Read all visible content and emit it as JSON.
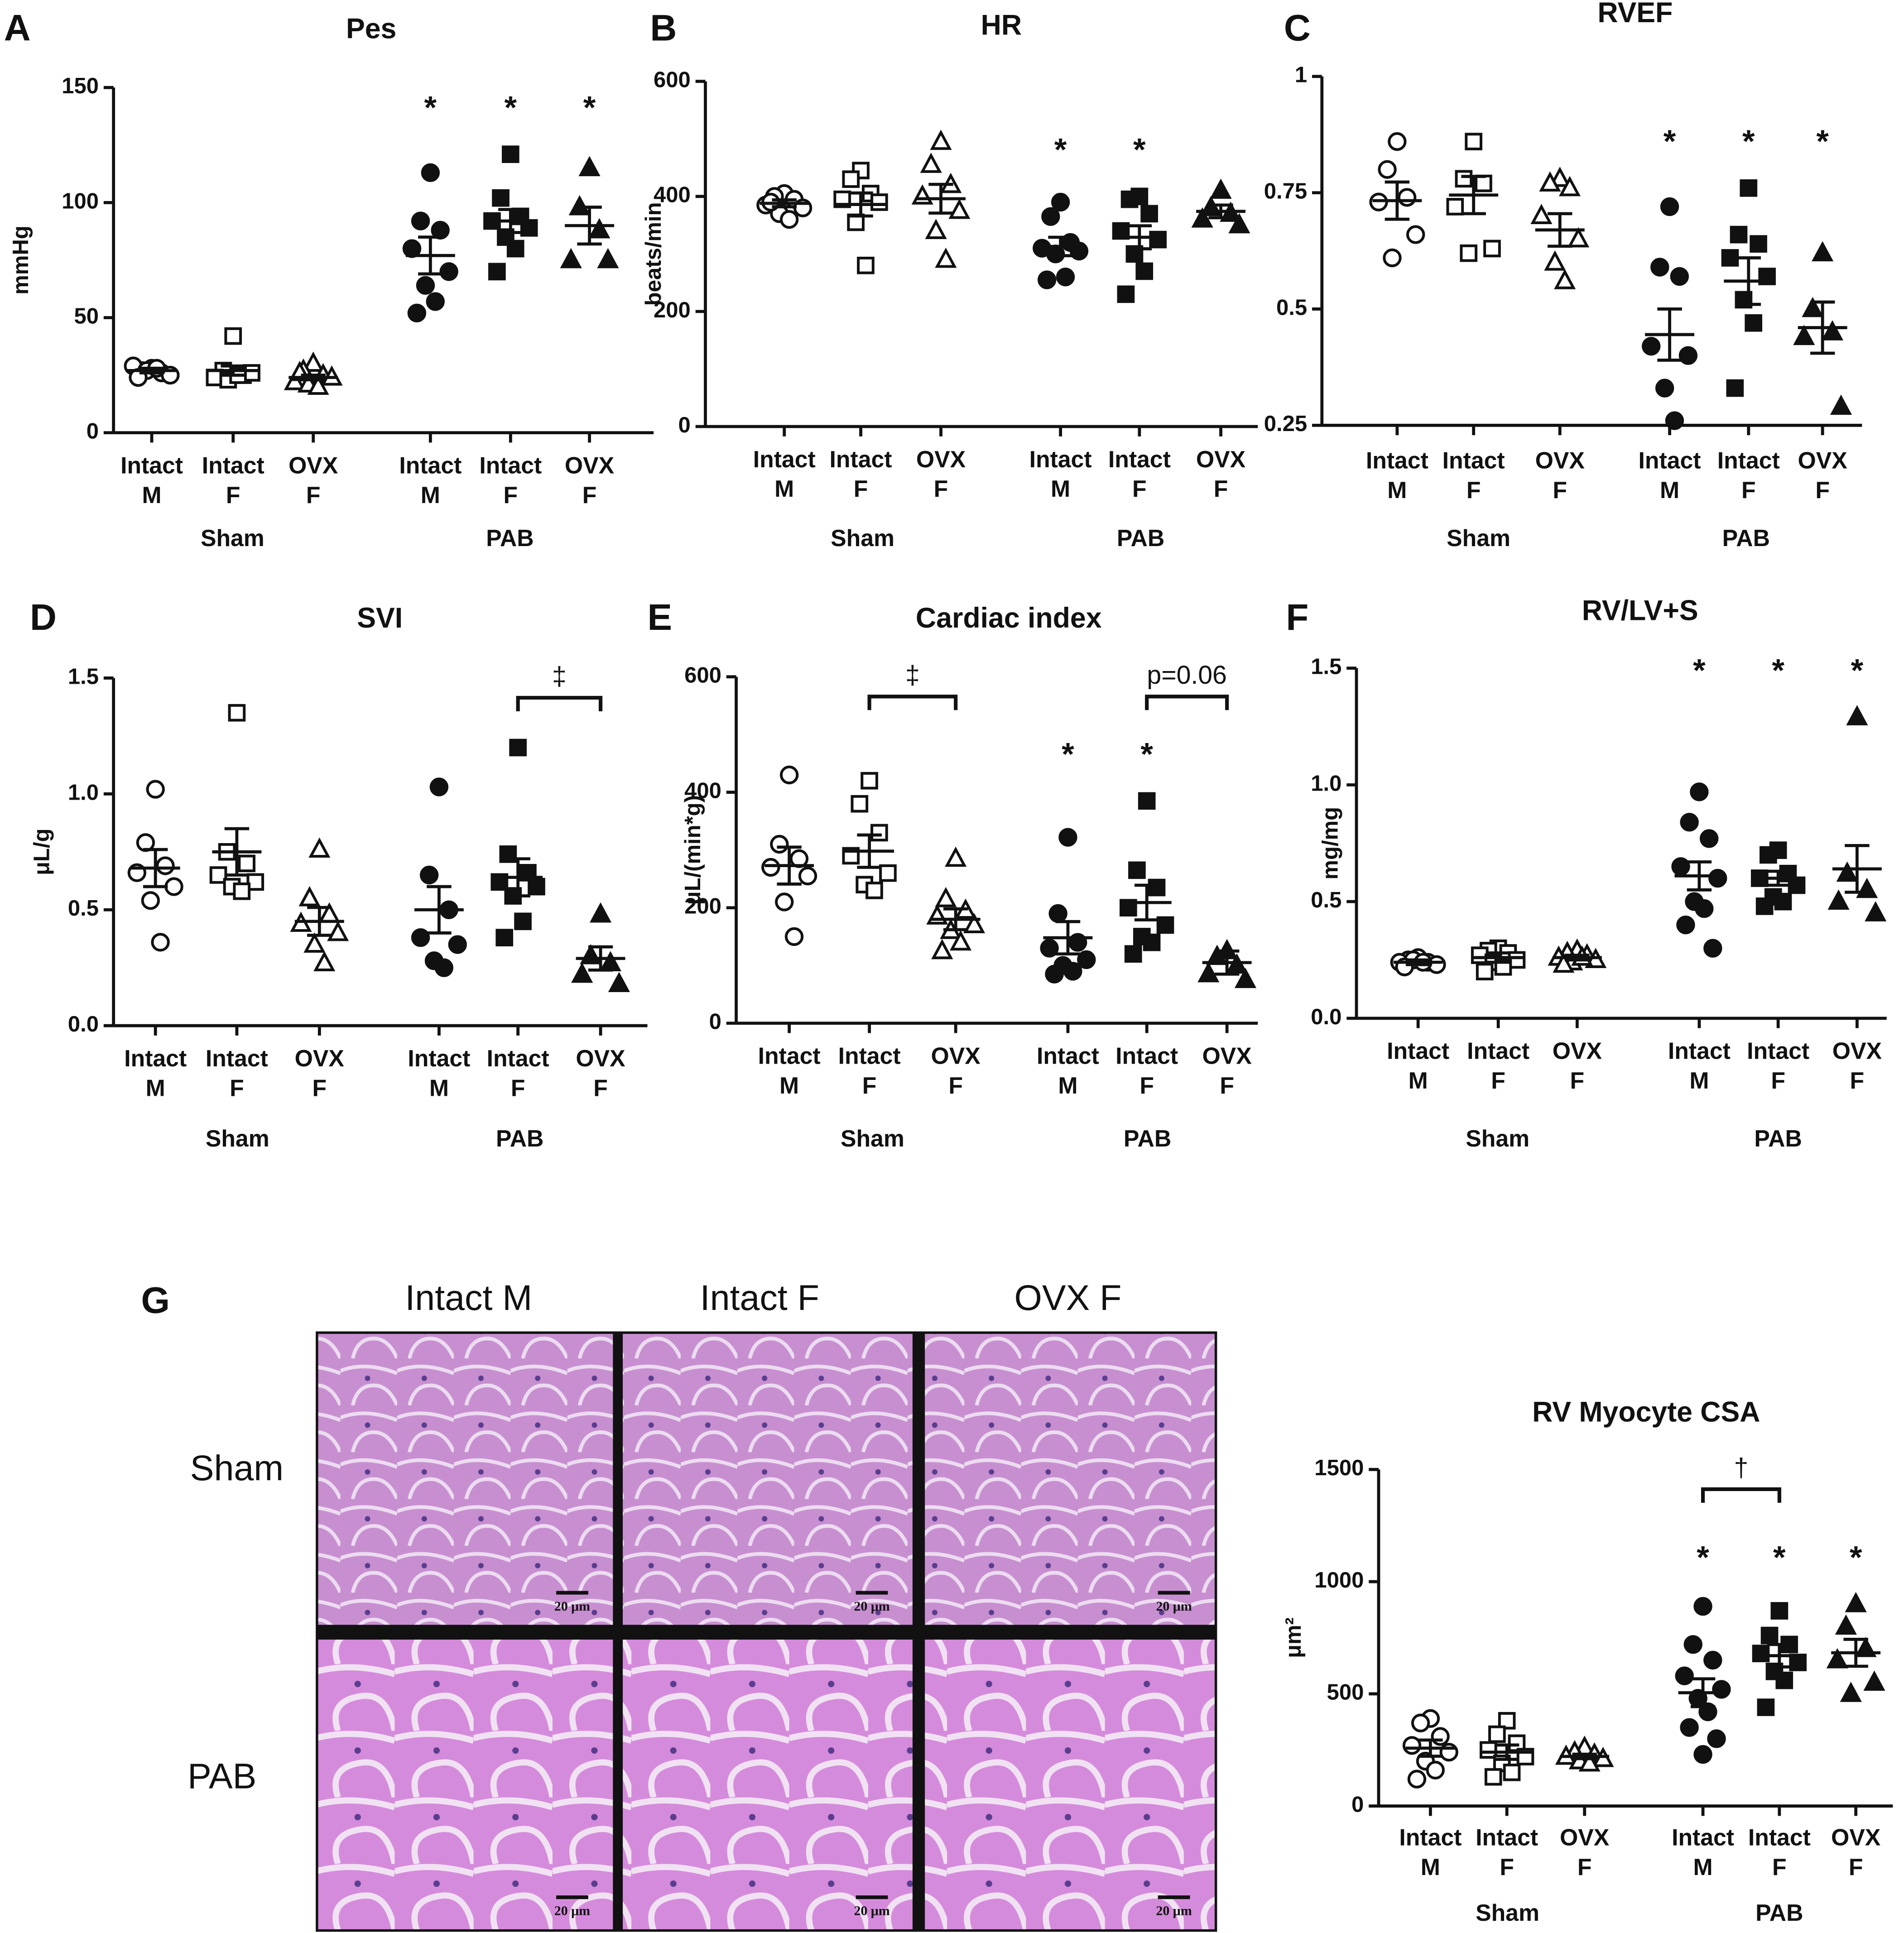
{
  "chart_data": [
    {
      "type": "dotplot",
      "panel": "A",
      "title": "Pes",
      "ylabel": "mmHg",
      "ylim": [
        0,
        150
      ],
      "yticks": [
        0,
        50,
        100,
        150
      ],
      "categories": [
        [
          "Intact",
          "M"
        ],
        [
          "Intact",
          "F"
        ],
        [
          "OVX",
          "F"
        ],
        [
          "Intact",
          "M"
        ],
        [
          "Intact",
          "F"
        ],
        [
          "OVX",
          "F"
        ]
      ],
      "groups": [
        "Sham",
        "PAB"
      ],
      "markers": [
        "circle",
        "square",
        "triangle",
        "circle",
        "square",
        "triangle"
      ],
      "filled": [
        false,
        false,
        false,
        true,
        true,
        true
      ],
      "color": "#111111",
      "values": [
        [
          28,
          27,
          26,
          29,
          25,
          27,
          28,
          24
        ],
        [
          42,
          27,
          25,
          24,
          26,
          23,
          25
        ],
        [
          30,
          27,
          25,
          22,
          24,
          21,
          20,
          26
        ],
        [
          113,
          92,
          88,
          80,
          70,
          64,
          57,
          52
        ],
        [
          121,
          102,
          94,
          92,
          89,
          85,
          80,
          70
        ],
        [
          115,
          98,
          88,
          75,
          75
        ]
      ],
      "means": [
        27,
        27,
        24,
        77,
        92,
        90
      ],
      "sems": [
        1,
        2,
        1,
        8,
        5,
        8
      ],
      "stars": [
        null,
        null,
        null,
        "*",
        "*",
        "*"
      ]
    },
    {
      "type": "dotplot",
      "panel": "B",
      "title": "HR",
      "ylabel": "beats/min",
      "ylim": [
        0,
        600
      ],
      "yticks": [
        0,
        200,
        400,
        600
      ],
      "categories": [
        [
          "Intact",
          "M"
        ],
        [
          "Intact",
          "F"
        ],
        [
          "OVX",
          "F"
        ],
        [
          "Intact",
          "M"
        ],
        [
          "Intact",
          "F"
        ],
        [
          "OVX",
          "F"
        ]
      ],
      "groups": [
        "Sham",
        "PAB"
      ],
      "markers": [
        "circle",
        "square",
        "triangle",
        "circle",
        "square",
        "triangle"
      ],
      "filled": [
        false,
        false,
        false,
        true,
        true,
        true
      ],
      "color": "#111111",
      "values": [
        [
          405,
          400,
          395,
          385,
          380,
          370,
          360,
          390
        ],
        [
          445,
          430,
          405,
          395,
          390,
          355,
          280
        ],
        [
          495,
          455,
          420,
          400,
          375,
          340,
          290
        ],
        [
          390,
          365,
          320,
          310,
          305,
          300,
          260,
          255
        ],
        [
          400,
          395,
          370,
          340,
          325,
          300,
          270,
          230
        ],
        [
          410,
          380,
          370,
          360,
          350
        ]
      ],
      "means": [
        388,
        386,
        396,
        313,
        329,
        374
      ],
      "sems": [
        6,
        20,
        25,
        16,
        20,
        11
      ],
      "stars": [
        null,
        null,
        null,
        "*",
        "*",
        null
      ]
    },
    {
      "type": "dotplot",
      "panel": "C",
      "title": "RVEF",
      "ylim": [
        0.25,
        1
      ],
      "yticks": [
        0.25,
        0.5,
        0.75,
        1
      ],
      "categories": [
        [
          "Intact",
          "M"
        ],
        [
          "Intact",
          "F"
        ],
        [
          "OVX",
          "F"
        ],
        [
          "Intact",
          "M"
        ],
        [
          "Intact",
          "F"
        ],
        [
          "OVX",
          "F"
        ]
      ],
      "groups": [
        "Sham",
        "PAB"
      ],
      "markers": [
        "circle",
        "square",
        "triangle",
        "circle",
        "square",
        "triangle"
      ],
      "filled": [
        false,
        false,
        false,
        true,
        true,
        true
      ],
      "color": "#111111",
      "values": [
        [
          0.86,
          0.8,
          0.74,
          0.73,
          0.66,
          0.61
        ],
        [
          0.86,
          0.78,
          0.77,
          0.72,
          0.63,
          0.62
        ],
        [
          0.78,
          0.77,
          0.76,
          0.7,
          0.65,
          0.6,
          0.56
        ],
        [
          0.72,
          0.59,
          0.57,
          0.42,
          0.4,
          0.33,
          0.26
        ],
        [
          0.76,
          0.66,
          0.64,
          0.61,
          0.57,
          0.52,
          0.47,
          0.33
        ],
        [
          0.62,
          0.5,
          0.45,
          0.44,
          0.29
        ]
      ],
      "means": [
        0.733,
        0.745,
        0.67,
        0.445,
        0.56,
        0.46
      ],
      "sems": [
        0.04,
        0.04,
        0.035,
        0.055,
        0.05,
        0.055
      ],
      "stars": [
        null,
        null,
        null,
        "*",
        "*",
        "*"
      ]
    },
    {
      "type": "dotplot",
      "panel": "D",
      "title": "SVI",
      "ylabel": "μL/g",
      "ylim": [
        0,
        1.5
      ],
      "yticks": [
        {
          "value": 0,
          "label": "0.0"
        },
        0.5,
        {
          "value": 1,
          "label": "1.0"
        },
        1.5
      ],
      "categories": [
        [
          "Intact",
          "M"
        ],
        [
          "Intact",
          "F"
        ],
        [
          "OVX",
          "F"
        ],
        [
          "Intact",
          "M"
        ],
        [
          "Intact",
          "F"
        ],
        [
          "OVX",
          "F"
        ]
      ],
      "groups": [
        "Sham",
        "PAB"
      ],
      "markers": [
        "circle",
        "square",
        "triangle",
        "circle",
        "square",
        "triangle"
      ],
      "filled": [
        false,
        false,
        false,
        true,
        true,
        true
      ],
      "color": "#111111",
      "values": [
        [
          1.02,
          0.79,
          0.69,
          0.66,
          0.6,
          0.54,
          0.36
        ],
        [
          1.35,
          0.75,
          0.7,
          0.65,
          0.62,
          0.6,
          0.58
        ],
        [
          0.76,
          0.55,
          0.48,
          0.44,
          0.4,
          0.35,
          0.27
        ],
        [
          1.03,
          0.65,
          0.5,
          0.38,
          0.35,
          0.28,
          0.25
        ],
        [
          1.2,
          0.74,
          0.66,
          0.62,
          0.6,
          0.56,
          0.45,
          0.38
        ],
        [
          0.48,
          0.3,
          0.27,
          0.22,
          0.18
        ]
      ],
      "means": [
        0.68,
        0.75,
        0.45,
        0.5,
        0.64,
        0.29
      ],
      "sems": [
        0.08,
        0.1,
        0.06,
        0.1,
        0.08,
        0.05
      ],
      "stars": [
        null,
        null,
        null,
        null,
        null,
        null
      ],
      "brackets": [
        {
          "text": "‡",
          "categories": [
            4,
            5
          ]
        }
      ]
    },
    {
      "type": "dotplot",
      "panel": "E",
      "title": "Cardiac index",
      "ylabel": "μL/(min*g)",
      "ylim": [
        0,
        600
      ],
      "yticks": [
        0,
        200,
        400,
        600
      ],
      "categories": [
        [
          "Intact",
          "M"
        ],
        [
          "Intact",
          "F"
        ],
        [
          "OVX",
          "F"
        ],
        [
          "Intact",
          "M"
        ],
        [
          "Intact",
          "F"
        ],
        [
          "OVX",
          "F"
        ]
      ],
      "groups": [
        "Sham",
        "PAB"
      ],
      "markers": [
        "circle",
        "square",
        "triangle",
        "circle",
        "square",
        "triangle"
      ],
      "filled": [
        false,
        false,
        false,
        true,
        true,
        true
      ],
      "color": "#111111",
      "values": [
        [
          430,
          310,
          285,
          270,
          255,
          210,
          150
        ],
        [
          420,
          380,
          330,
          290,
          260,
          240,
          230
        ],
        [
          285,
          215,
          195,
          185,
          170,
          160,
          140,
          125
        ],
        [
          322,
          190,
          140,
          130,
          110,
          100,
          90,
          85
        ],
        [
          385,
          265,
          235,
          200,
          170,
          150,
          140,
          120
        ],
        [
          125,
          115,
          100,
          85,
          75
        ]
      ],
      "means": [
        273,
        298,
        180,
        148,
        209,
        105
      ],
      "sems": [
        32,
        28,
        18,
        28,
        30,
        20
      ],
      "stars": [
        null,
        null,
        null,
        "*",
        "*",
        null
      ],
      "brackets": [
        {
          "text": "‡",
          "categories": [
            1,
            2
          ]
        },
        {
          "text": "p=0.06",
          "categories": [
            4,
            5
          ]
        }
      ]
    },
    {
      "type": "dotplot",
      "panel": "F",
      "title": "RV/LV+S",
      "ylabel": "mg/mg",
      "ylim": [
        0,
        1.5
      ],
      "yticks": [
        {
          "value": 0,
          "label": "0.0"
        },
        0.5,
        {
          "value": 1,
          "label": "1.0"
        },
        1.5
      ],
      "categories": [
        [
          "Intact",
          "M"
        ],
        [
          "Intact",
          "F"
        ],
        [
          "OVX",
          "F"
        ],
        [
          "Intact",
          "M"
        ],
        [
          "Intact",
          "F"
        ],
        [
          "OVX",
          "F"
        ]
      ],
      "groups": [
        "Sham",
        "PAB"
      ],
      "markers": [
        "circle",
        "square",
        "triangle",
        "circle",
        "square",
        "triangle"
      ],
      "filled": [
        false,
        false,
        false,
        true,
        true,
        true
      ],
      "color": "#111111",
      "values": [
        [
          0.26,
          0.25,
          0.24,
          0.24,
          0.23,
          0.25,
          0.24,
          0.22
        ],
        [
          0.3,
          0.29,
          0.28,
          0.27,
          0.25,
          0.24,
          0.22,
          0.2
        ],
        [
          0.29,
          0.28,
          0.27,
          0.26,
          0.25,
          0.24,
          0.26,
          0.23
        ],
        [
          0.97,
          0.84,
          0.77,
          0.65,
          0.6,
          0.5,
          0.47,
          0.4,
          0.3
        ],
        [
          0.72,
          0.7,
          0.62,
          0.6,
          0.57,
          0.52,
          0.5,
          0.48
        ],
        [
          1.29,
          0.62,
          0.55,
          0.5,
          0.45
        ]
      ],
      "means": [
        0.24,
        0.26,
        0.26,
        0.61,
        0.6,
        0.64
      ],
      "sems": [
        0.01,
        0.02,
        0.01,
        0.06,
        0.03,
        0.1
      ],
      "stars": [
        null,
        null,
        null,
        "*",
        "*",
        "*"
      ]
    },
    {
      "type": "dotplot",
      "title": "RV Myocyte CSA",
      "ylabel": "μm²",
      "ylim": [
        0,
        1500
      ],
      "yticks": [
        0,
        500,
        1000,
        1500
      ],
      "categories": [
        [
          "Intact",
          "M"
        ],
        [
          "Intact",
          "F"
        ],
        [
          "OVX",
          "F"
        ],
        [
          "Intact",
          "M"
        ],
        [
          "Intact",
          "F"
        ],
        [
          "OVX",
          "F"
        ]
      ],
      "groups": [
        "Sham",
        "PAB"
      ],
      "markers": [
        "circle",
        "square",
        "triangle",
        "circle",
        "square",
        "triangle"
      ],
      "filled": [
        false,
        false,
        false,
        true,
        true,
        true
      ],
      "color": "#111111",
      "values": [
        [
          390,
          370,
          310,
          270,
          240,
          200,
          160,
          120
        ],
        [
          380,
          320,
          280,
          250,
          220,
          190,
          150,
          130
        ],
        [
          260,
          240,
          230,
          220,
          210,
          200,
          190
        ],
        [
          890,
          720,
          650,
          580,
          520,
          480,
          420,
          350,
          300,
          230
        ],
        [
          870,
          760,
          720,
          680,
          640,
          600,
          560,
          440
        ],
        [
          900,
          800,
          700,
          650,
          550,
          500
        ]
      ],
      "means": [
        258,
        240,
        221,
        505,
        670,
        683
      ],
      "sems": [
        36,
        32,
        10,
        62,
        50,
        60
      ],
      "stars": [
        null,
        null,
        null,
        "*",
        "*",
        "*"
      ],
      "brackets": [
        {
          "text": "†",
          "categories": [
            3,
            4
          ]
        }
      ]
    }
  ],
  "histology": {
    "panel": "G",
    "columns": [
      "Intact M",
      "Intact F",
      "OVX F"
    ],
    "rows": [
      "Sham",
      "PAB"
    ],
    "scale_bar": "20 μm"
  }
}
